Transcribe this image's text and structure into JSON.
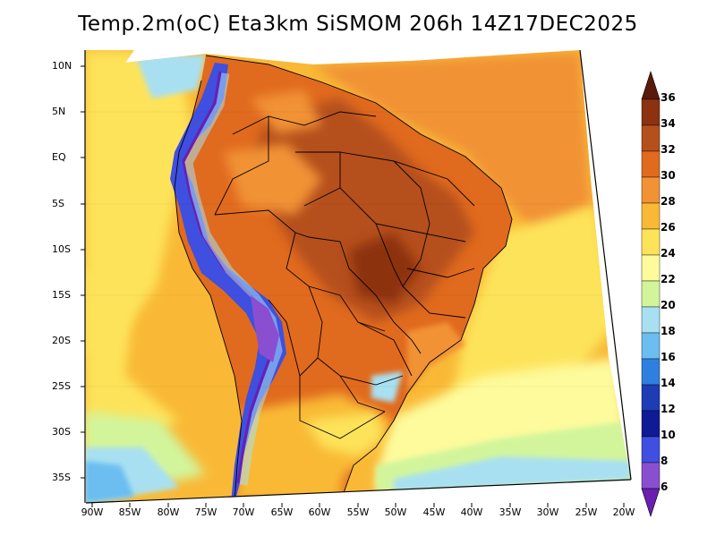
{
  "title": "Temp.2m(oC) Eta3km SiSMOM 206h 14Z17DEC2025",
  "map": {
    "variable": "2 m temperature",
    "units": "oC",
    "region": "South America",
    "lat_labels": [
      "10N",
      "5N",
      "EQ",
      "5S",
      "10S",
      "15S",
      "20S",
      "25S",
      "30S",
      "35S"
    ],
    "lon_labels": [
      "90W",
      "85W",
      "80W",
      "75W",
      "70W",
      "65W",
      "60W",
      "55W",
      "50W",
      "45W",
      "40W",
      "35W",
      "30W",
      "25W",
      "20W"
    ]
  },
  "colorbar": {
    "labels": [
      "36",
      "34",
      "32",
      "30",
      "28",
      "26",
      "24",
      "22",
      "20",
      "18",
      "16",
      "14",
      "12",
      "10",
      "8",
      "6"
    ],
    "colors": [
      "#5a1a0a",
      "#8c3211",
      "#b5501c",
      "#e06a1e",
      "#f19234",
      "#f9b936",
      "#fde35a",
      "#fdfb9c",
      "#d2f59c",
      "#a8e0f2",
      "#6cbdf0",
      "#2f7fe0",
      "#1e3cb4",
      "#0f1b94",
      "#3f4fe0",
      "#8a4fd0",
      "#6a1fb0"
    ]
  }
}
